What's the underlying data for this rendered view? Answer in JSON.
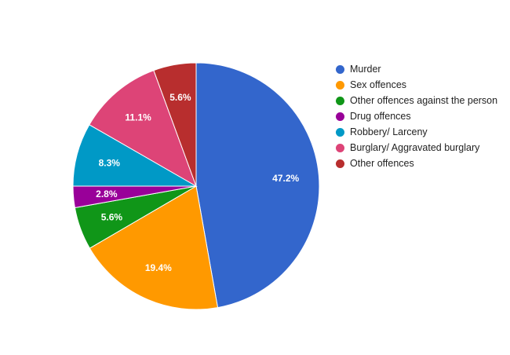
{
  "chart_data": {
    "type": "pie",
    "title": "",
    "legend_position": "right",
    "start_angle_deg": 0,
    "direction": "clockwise",
    "slices": [
      {
        "label": "Murder",
        "value": 47.2,
        "display": "47.2%",
        "color": "#3366cc"
      },
      {
        "label": "Sex offences",
        "value": 19.4,
        "display": "19.4%",
        "color": "#ff9900"
      },
      {
        "label": "Other offences against the person",
        "value": 5.6,
        "display": "5.6%",
        "color": "#109618"
      },
      {
        "label": "Drug offences",
        "value": 2.8,
        "display": "2.8%",
        "color": "#990099"
      },
      {
        "label": "Robbery/ Larceny",
        "value": 8.3,
        "display": "8.3%",
        "color": "#0099c6"
      },
      {
        "label": "Burglary/ Aggravated burglary",
        "value": 11.1,
        "display": "11.1%",
        "color": "#dd4477"
      },
      {
        "label": "Other offences",
        "value": 5.6,
        "display": "5.6%",
        "color": "#b82e2e"
      }
    ]
  }
}
